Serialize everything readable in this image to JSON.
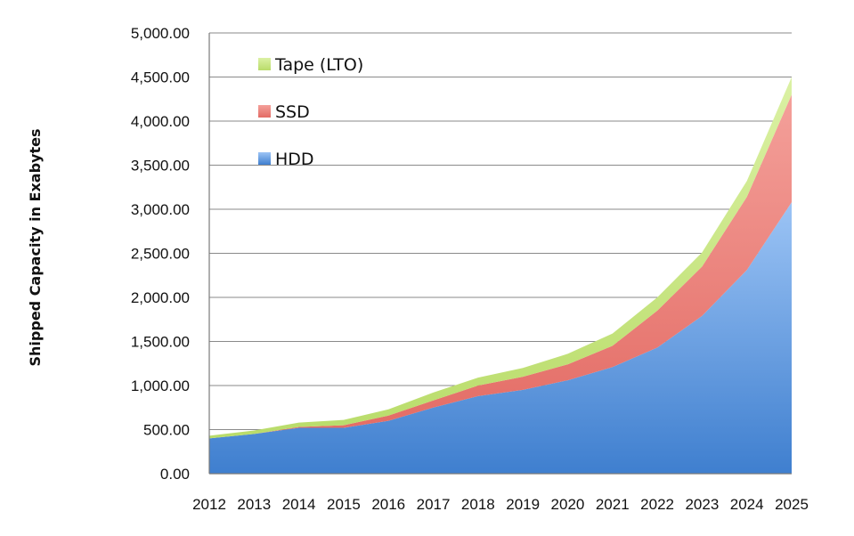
{
  "chart_data": {
    "type": "area",
    "stacked": true,
    "title": "",
    "xlabel": "",
    "ylabel": "Shipped Capacity in Exabytes",
    "x": [
      "2012",
      "2013",
      "2014",
      "2015",
      "2016",
      "2017",
      "2018",
      "2019",
      "2020",
      "2021",
      "2022",
      "2023",
      "2024",
      "2025"
    ],
    "yticks": [
      "0.00",
      "500.00",
      "1,000.00",
      "1,500.00",
      "2,000.00",
      "2,500.00",
      "3,000.00",
      "3,500.00",
      "4,000.00",
      "4,500.00",
      "5,000.00"
    ],
    "ylim": [
      0,
      5000
    ],
    "grid": "horizontal",
    "legend_position": "top-left",
    "series": [
      {
        "name": "HDD",
        "color": "#6fa6ea",
        "values": [
          400,
          450,
          520,
          520,
          600,
          750,
          880,
          950,
          1060,
          1210,
          1430,
          1790,
          2310,
          3080
        ]
      },
      {
        "name": "SSD",
        "color": "#ee8f8f",
        "values": [
          0,
          0,
          10,
          30,
          60,
          80,
          120,
          150,
          180,
          240,
          420,
          560,
          830,
          1220
        ]
      },
      {
        "name": "Tape (LTO)",
        "color": "#cde98a",
        "values": [
          30,
          40,
          50,
          60,
          70,
          90,
          90,
          100,
          120,
          140,
          150,
          160,
          180,
          200
        ]
      }
    ],
    "legend": [
      "Tape (LTO)",
      "SSD",
      "HDD"
    ]
  }
}
